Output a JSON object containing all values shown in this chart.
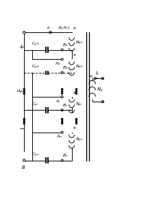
{
  "fig_width": 2.16,
  "fig_height": 3.16,
  "dpi": 100,
  "bg_color": "#ffffff",
  "line_color": "#000000",
  "lw": 0.7
}
